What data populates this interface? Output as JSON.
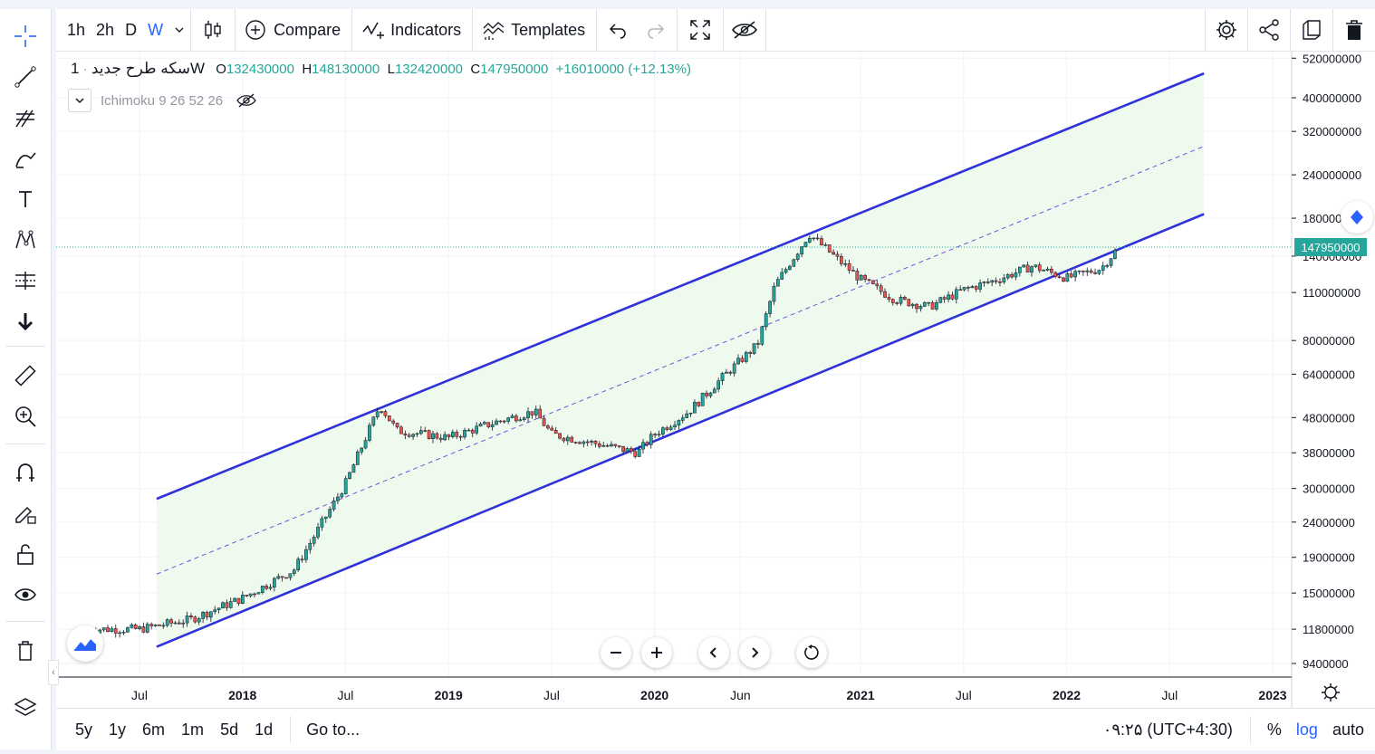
{
  "toolbar": {
    "intervals": [
      "1h",
      "2h",
      "D",
      "W"
    ],
    "compare_label": "Compare",
    "indicators_label": "Indicators",
    "templates_label": "Templates"
  },
  "legend": {
    "symbol": "سکه طرح جدید",
    "interval": "1W",
    "open_label": "O",
    "open": "132430000",
    "high_label": "H",
    "high": "148130000",
    "low_label": "L",
    "low": "132420000",
    "close_label": "C",
    "close": "147950000",
    "change": "+16010000 (+12.13%)",
    "indicator": "Ichimoku 9 26 52 26"
  },
  "price_axis": {
    "ticks": [
      "520000000",
      "400000000",
      "320000000",
      "240000000",
      "180000000",
      "140000000",
      "110000000",
      "80000000",
      "64000000",
      "48000000",
      "38000000",
      "30000000",
      "24000000",
      "19000000",
      "15000000",
      "11800000",
      "9400000"
    ],
    "last_price": "147950000",
    "last_price_color": "#26a69a"
  },
  "time_axis": {
    "ticks": [
      "Jul",
      "2018",
      "Jul",
      "2019",
      "Jul",
      "2020",
      "Jun",
      "2021",
      "Jul",
      "2022",
      "Jul",
      "2023"
    ]
  },
  "bottom": {
    "ranges": [
      "5y",
      "1y",
      "6m",
      "1m",
      "5d",
      "1d"
    ],
    "goto_label": "Go to...",
    "clock": "۰۹:۲۵ (UTC+4:30)",
    "percent_label": "%",
    "log_label": "log",
    "auto_label": "auto"
  },
  "colors": {
    "up": "#26a69a",
    "down": "#ef5350",
    "channel": "#2e32d8",
    "channel_fill": "#eefaee",
    "median": "#7b4ed8",
    "accent": "#2962ff"
  },
  "chart_data": {
    "type": "candlestick",
    "interval": "1W",
    "scale": "log",
    "grid": true,
    "x": [
      "2017-04",
      "2017-07",
      "2017-10",
      "2018-01",
      "2018-04",
      "2018-07",
      "2018-09",
      "2018-10",
      "2019-01",
      "2019-04",
      "2019-06",
      "2019-07",
      "2019-10",
      "2019-12",
      "2020-01",
      "2020-03",
      "2020-05",
      "2020-07",
      "2020-08",
      "2020-10",
      "2021-01",
      "2021-03",
      "2021-05",
      "2021-07",
      "2021-09",
      "2021-11",
      "2022-01",
      "2022-03",
      "2022-04"
    ],
    "close": [
      11800000,
      11800000,
      12600000,
      14500000,
      17500000,
      31000000,
      52000000,
      44000000,
      42000000,
      47000000,
      50000000,
      43000000,
      40000000,
      38000000,
      43000000,
      50000000,
      63000000,
      78000000,
      115000000,
      162000000,
      120000000,
      105000000,
      100000000,
      112000000,
      120000000,
      131000000,
      121000000,
      129000000,
      147950000
    ],
    "channel": {
      "upper": [
        [
          "2017-08",
          28000000
        ],
        [
          "2022-09",
          470000000
        ]
      ],
      "lower": [
        [
          "2017-08",
          10500000
        ],
        [
          "2022-09",
          185000000
        ]
      ],
      "median": [
        [
          "2017-08",
          17000000
        ],
        [
          "2022-09",
          290000000
        ]
      ]
    },
    "ylim": [
      8600000,
      560000000
    ]
  }
}
